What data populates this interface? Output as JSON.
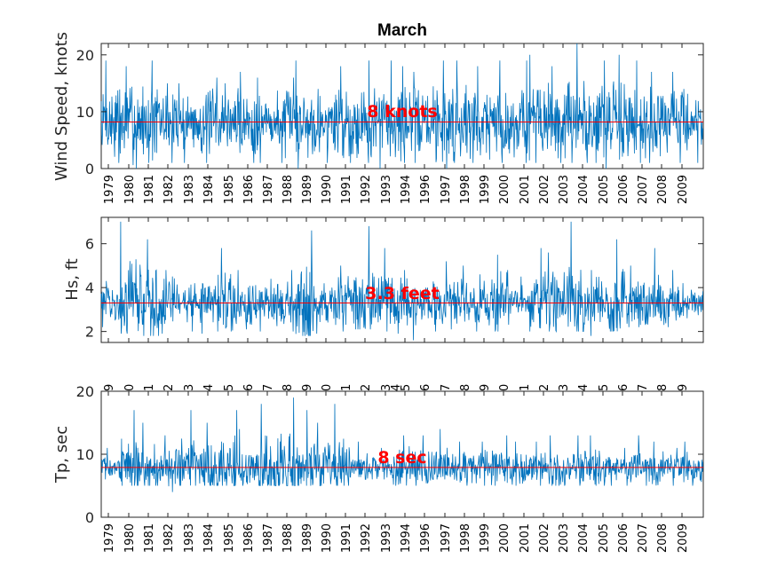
{
  "chart_data": [
    {
      "type": "line",
      "title": "March",
      "ylabel": "Wind Speed, knots",
      "ylim": [
        0,
        22
      ],
      "yticks": [
        "0",
        "10",
        "20"
      ],
      "x_range": [
        1978.9,
        2009.95
      ],
      "xticks": [
        "1979",
        "1980",
        "1981",
        "1982",
        "1983",
        "1984",
        "1985",
        "1986",
        "1987",
        "1988",
        "1989",
        "1990",
        "1991",
        "1992",
        "1993",
        "1994",
        "1996",
        "1997",
        "1998",
        "1999",
        "2000",
        "2001",
        "2002",
        "2003",
        "2004",
        "2005",
        "2006",
        "2007",
        "2008",
        "2009"
      ],
      "reference": {
        "value": 8.2,
        "label": "8 knots"
      },
      "series_color": "#0072bd",
      "reference_color": "#ff0000",
      "series": [
        {
          "values_yearly_peak": [
            19,
            18,
            19,
            15,
            15,
            16,
            15,
            17,
            16,
            16,
            19,
            14,
            18,
            19,
            19,
            18,
            17,
            19,
            19,
            18,
            19,
            19,
            20,
            18,
            22,
            19,
            20,
            19,
            17,
            17,
            14
          ],
          "values_yearly_low": [
            1,
            0,
            1,
            1,
            1,
            1,
            1,
            1,
            1,
            1,
            0,
            1,
            1,
            1,
            0,
            1,
            1,
            0,
            1,
            1,
            1,
            1,
            1,
            1,
            1,
            1,
            0,
            1,
            1,
            1,
            1
          ],
          "mean": 8.2
        }
      ]
    },
    {
      "type": "line",
      "title": "",
      "ylabel": "Hs, ft",
      "ylim": [
        1.5,
        7.2
      ],
      "yticks": [
        "2",
        "4",
        "6"
      ],
      "x_range": [
        1978.9,
        2009.95
      ],
      "reference": {
        "value": 3.3,
        "label": "3.3 feet"
      },
      "series_color": "#0072bd",
      "reference_color": "#ff0000",
      "series": [
        {
          "values_yearly_peak": [
            4.3,
            7.0,
            6.2,
            4.8,
            4.2,
            4.2,
            5.8,
            4.8,
            4.4,
            4.8,
            6.6,
            4.2,
            5.0,
            6.8,
            5.8,
            4.8,
            4.0,
            5.2,
            5.0,
            4.6,
            5.5,
            4.5,
            5.8,
            5.6,
            7.0,
            4.8,
            6.2,
            5.0,
            5.8,
            4.8,
            3.9
          ],
          "values_yearly_low": [
            2.2,
            1.9,
            1.8,
            1.9,
            2.0,
            1.9,
            2.0,
            2.1,
            2.0,
            2.0,
            1.8,
            1.9,
            2.0,
            2.1,
            2.0,
            1.9,
            1.6,
            2.0,
            2.1,
            2.0,
            2.0,
            2.2,
            2.0,
            2.0,
            2.0,
            1.8,
            2.0,
            2.2,
            2.3,
            2.2,
            2.6
          ],
          "mean": 3.3
        }
      ]
    },
    {
      "type": "line",
      "title": "",
      "ylabel": "Tp, sec",
      "ylim": [
        0,
        20
      ],
      "yticks": [
        "0",
        "10",
        "20"
      ],
      "x_range": [
        1978.9,
        2009.95
      ],
      "xticks": [
        "1979",
        "1980",
        "1981",
        "1982",
        "1983",
        "1984",
        "1985",
        "1986",
        "1987",
        "1988",
        "1989",
        "1990",
        "1991",
        "1992",
        "1993",
        "1994",
        "1996",
        "1997",
        "1998",
        "1999",
        "2000",
        "2001",
        "2002",
        "2003",
        "2004",
        "2005",
        "2006",
        "2007",
        "2008",
        "2009"
      ],
      "top_xticks": [
        "9",
        "0",
        "1",
        "2",
        "3",
        "4",
        "5",
        "6",
        "7",
        "8",
        "9",
        "0",
        "1",
        "2",
        "3",
        "4",
        "5",
        "6",
        "7",
        "8",
        "9",
        "0",
        "1",
        "2",
        "3",
        "4",
        "5",
        "6",
        "7",
        "8",
        "9"
      ],
      "reference": {
        "value": 7.9,
        "label": "8 sec"
      },
      "series_color": "#0072bd",
      "reference_color": "#ff0000",
      "series": [
        {
          "values_yearly_peak": [
            11,
            17,
            15,
            13,
            17,
            15,
            17,
            14,
            18,
            19,
            17,
            15,
            18,
            12,
            11,
            13,
            13,
            14,
            12,
            12,
            13,
            12,
            12,
            13,
            13,
            13,
            11,
            13,
            12,
            11,
            12
          ],
          "values_yearly_low": [
            6,
            5,
            5,
            4,
            5,
            5,
            5,
            5,
            5,
            5,
            5,
            5,
            5,
            6,
            6,
            5,
            5,
            6,
            5,
            5,
            5,
            5,
            5,
            5,
            5,
            5,
            5,
            5,
            5,
            5,
            5
          ],
          "mean": 7.9
        }
      ]
    }
  ]
}
